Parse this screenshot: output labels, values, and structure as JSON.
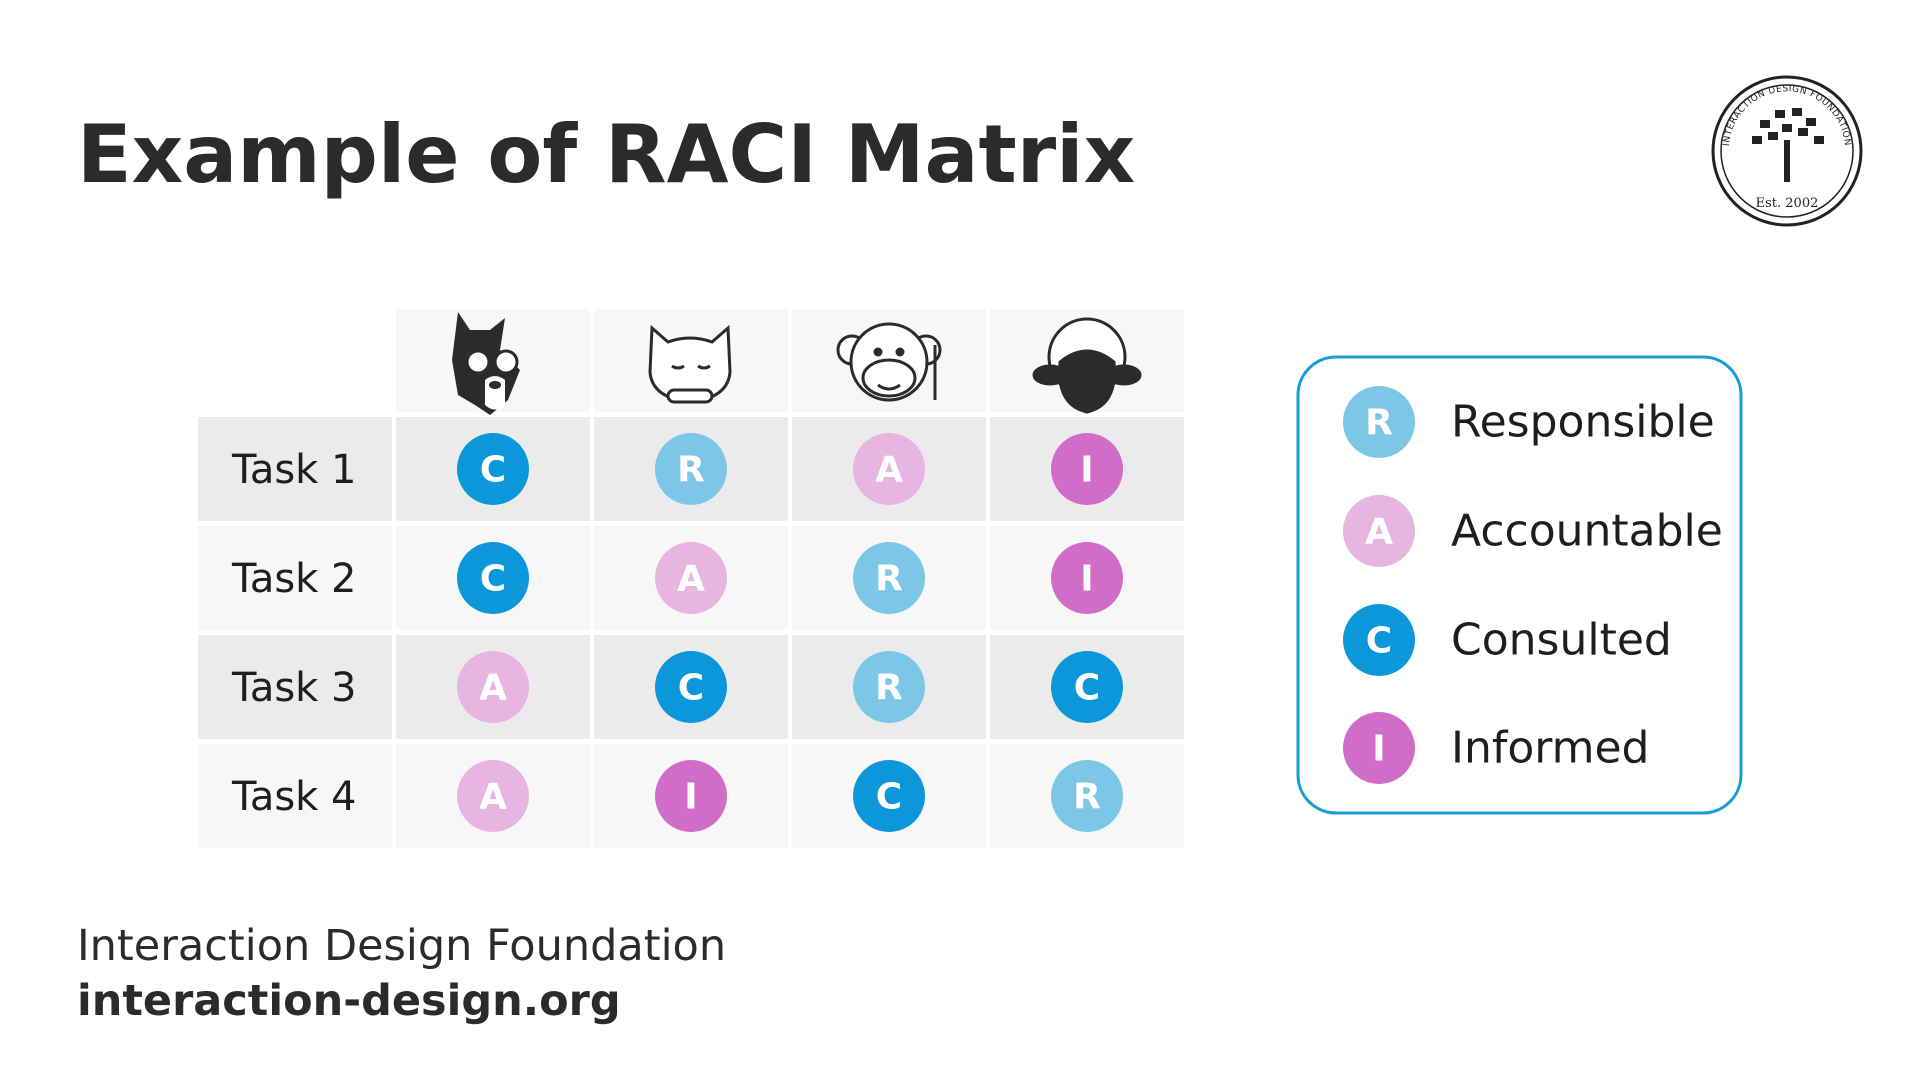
{
  "header": {
    "title": "Example of RACI Matrix"
  },
  "logo": {
    "name": "INTERACTION DESIGN FOUNDATION",
    "established": "Est. 2002"
  },
  "table": {
    "rows": [
      {
        "label": "Task 1",
        "cells": [
          "C",
          "R",
          "A",
          "I"
        ]
      },
      {
        "label": "Task 2",
        "cells": [
          "C",
          "A",
          "R",
          "I"
        ]
      },
      {
        "label": "Task 3",
        "cells": [
          "A",
          "C",
          "R",
          "C"
        ]
      },
      {
        "label": "Task 4",
        "cells": [
          "A",
          "I",
          "C",
          "R"
        ]
      }
    ]
  },
  "legend": [
    {
      "letter": "R",
      "label": "Responsible"
    },
    {
      "letter": "A",
      "label": "Accountable"
    },
    {
      "letter": "C",
      "label": "Consulted"
    },
    {
      "letter": "I",
      "label": "Informed"
    }
  ],
  "colors": {
    "R": "#7cc6e8",
    "A": "#e8b4e2",
    "C": "#0b97d9",
    "I": "#d16dc9"
  },
  "footer": {
    "organization": "Interaction Design Foundation",
    "url": "interaction-design.org"
  }
}
